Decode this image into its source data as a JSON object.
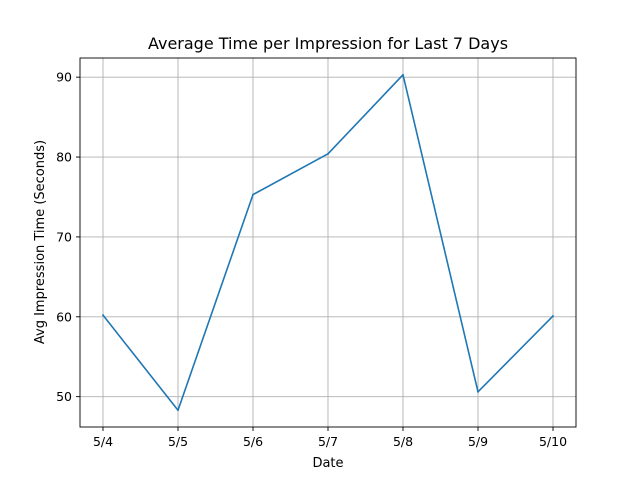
{
  "chart_data": {
    "type": "line",
    "title": "Average Time per Impression for Last 7 Days",
    "xlabel": "Date",
    "ylabel": "Avg Impression Time (Seconds)",
    "categories": [
      "5/4",
      "5/5",
      "5/6",
      "5/7",
      "5/8",
      "5/9",
      "5/10"
    ],
    "series": [
      {
        "values": [
          60.2,
          48.3,
          75.3,
          80.4,
          90.3,
          50.6,
          60.1
        ],
        "color": "#1f77b4"
      }
    ],
    "ylim": [
      46.2,
      92.4
    ],
    "yticks": [
      50,
      60,
      70,
      80,
      90
    ],
    "grid": true,
    "legend": "none"
  }
}
